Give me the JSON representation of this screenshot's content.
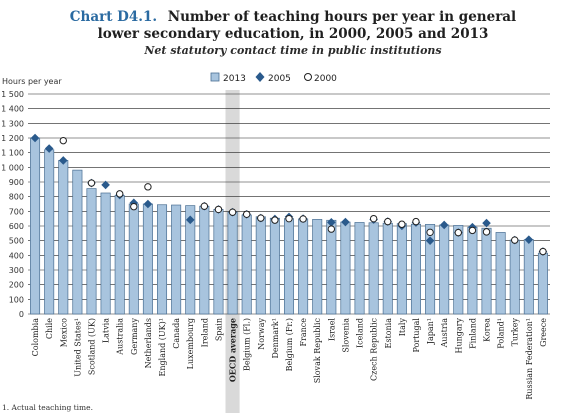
{
  "header": {
    "chart_number": "Chart D4.1.",
    "title_line1": "Number of teaching hours per year in general",
    "title_line2": "lower secondary education, in 2000, 2005 and 2013",
    "subtitle": "Net statutory contact time in public institutions"
  },
  "footnote": "1. Actual teaching time.",
  "colors": {
    "bar_fill": "#a8c4de",
    "bar_stroke": "#4a6f93",
    "diamond": "#2a5a8c",
    "oecd_band": "#d9d9d9",
    "title_number": "#2a6aa1"
  },
  "chart_data": {
    "type": "bar",
    "ylabel": "Hours per year",
    "ylim": [
      0,
      1500
    ],
    "yticks": [
      0,
      100,
      200,
      300,
      400,
      500,
      600,
      700,
      800,
      900,
      1000,
      1100,
      1200,
      1300,
      1400,
      1500
    ],
    "ytick_labels": [
      "0",
      "100",
      "200",
      "300",
      "400",
      "500",
      "600",
      "700",
      "800",
      "900",
      "1 000",
      "1 100",
      "1 200",
      "1 300",
      "1 400",
      "1 500"
    ],
    "grid": true,
    "legend_position": "top-center",
    "highlight_category": "OECD average",
    "categories": [
      "Colombia",
      "Chile",
      "Mexico",
      "United States¹",
      "Scotland (UK)",
      "Latvia",
      "Australia",
      "Germany",
      "Netherlands",
      "England (UK)¹",
      "Canada",
      "Luxembourg",
      "Ireland",
      "Spain",
      "OECD average",
      "Belgium (Fl.)",
      "Norway",
      "Denmark¹",
      "Belgium (Fr.)",
      "France",
      "Slovak Republic",
      "Israel",
      "Slovenia",
      "Iceland",
      "Czech Republic",
      "Estonia",
      "Italy",
      "Portugal",
      "Japan¹",
      "Austria",
      "Hungary",
      "Finland",
      "Korea",
      "Poland¹",
      "Turkey",
      "Russian Federation¹",
      "Greece"
    ],
    "series": [
      {
        "name": "2013",
        "marker": "bar",
        "values": [
          1200,
          1120,
          1047,
          981,
          855,
          825,
          808,
          750,
          750,
          745,
          743,
          739,
          735,
          713,
          694,
          675,
          663,
          653,
          650,
          648,
          645,
          639,
          627,
          624,
          622,
          619,
          616,
          612,
          611,
          607,
          604,
          592,
          585,
          556,
          504,
          507,
          415
        ]
      },
      {
        "name": "2005",
        "marker": "diamond",
        "values": [
          1200,
          1128,
          1047,
          null,
          893,
          880,
          811,
          758,
          750,
          null,
          null,
          642,
          735,
          713,
          694,
          680,
          654,
          648,
          662,
          650,
          null,
          625,
          627,
          null,
          644,
          630,
          601,
          623,
          500,
          607,
          555,
          592,
          620,
          null,
          504,
          507,
          426
        ]
      },
      {
        "name": "2000",
        "marker": "circle",
        "values": [
          null,
          null,
          1182,
          null,
          893,
          null,
          819,
          732,
          867,
          null,
          null,
          null,
          735,
          713,
          694,
          680,
          654,
          640,
          650,
          648,
          null,
          579,
          null,
          null,
          650,
          630,
          612,
          630,
          557,
          null,
          555,
          570,
          560,
          null,
          504,
          null,
          426
        ]
      }
    ]
  }
}
